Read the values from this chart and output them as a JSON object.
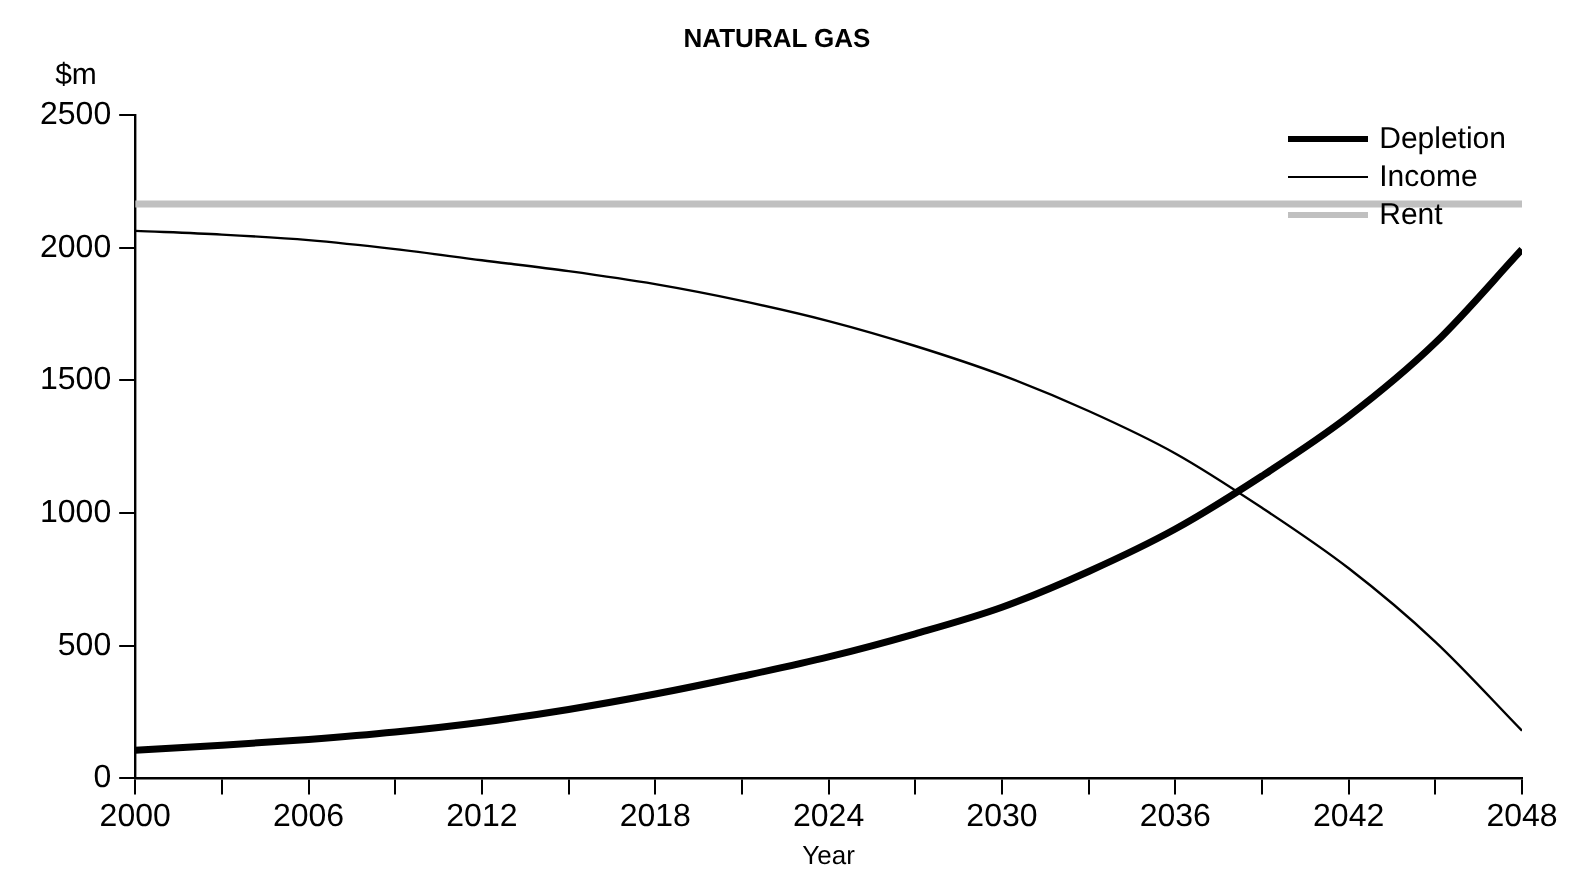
{
  "chart_data": {
    "type": "line",
    "title": "NATURAL GAS",
    "xlabel": "Year",
    "ylabel": "$m",
    "x": [
      2000,
      2003,
      2006,
      2009,
      2012,
      2015,
      2018,
      2021,
      2024,
      2027,
      2030,
      2033,
      2036,
      2039,
      2042,
      2045,
      2048
    ],
    "series": [
      {
        "name": "Depletion",
        "color": "#000000",
        "values": [
          106,
          125,
          147,
          175,
          212,
          260,
          318,
          385,
          458,
          545,
          645,
          780,
          940,
          1140,
          1365,
          1642,
          1994
        ]
      },
      {
        "name": "Income",
        "color": "#000000",
        "values": [
          2064,
          2050,
          2029,
          1995,
          1953,
          1912,
          1863,
          1800,
          1724,
          1630,
          1520,
          1385,
          1225,
          1020,
          792,
          515,
          180
        ]
      },
      {
        "name": "Rent",
        "color": "#c0c0c0",
        "x": [
          2000,
          2048
        ],
        "values": [
          2165,
          2165
        ]
      }
    ],
    "xlim": [
      2000,
      2048
    ],
    "xticks": [
      2000,
      {
        "value": 2003,
        "label": null
      },
      2006,
      {
        "value": 2009,
        "label": null
      },
      2012,
      {
        "value": 2015,
        "label": null
      },
      2018,
      {
        "value": 2021,
        "label": null
      },
      2024,
      {
        "value": 2027,
        "label": null
      },
      2030,
      {
        "value": 2033,
        "label": null
      },
      2036,
      {
        "value": 2039,
        "label": null
      },
      2042,
      {
        "value": 2045,
        "label": null
      },
      2048
    ],
    "ylim": [
      0,
      2500
    ],
    "yticks": [
      0,
      500,
      1000,
      1500,
      2000,
      2500
    ],
    "legend": "top right",
    "marker": "none",
    "line_style": "solid"
  }
}
